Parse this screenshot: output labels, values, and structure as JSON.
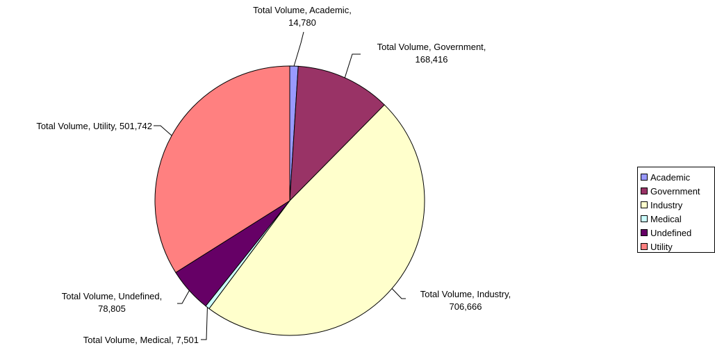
{
  "chart_data": {
    "type": "pie",
    "series_name": "Total Volume",
    "categories": [
      "Academic",
      "Government",
      "Industry",
      "Medical",
      "Undefined",
      "Utility"
    ],
    "values": [
      14780,
      168416,
      706666,
      7501,
      78805,
      501742
    ],
    "colors": [
      "#9999ff",
      "#993366",
      "#ffffcc",
      "#ccffff",
      "#660066",
      "#ff8080"
    ],
    "data_labels": [
      [
        "Total Volume, Academic,",
        "14,780"
      ],
      [
        "Total Volume, Government,",
        "168,416"
      ],
      [
        "Total Volume, Industry,",
        "706,666"
      ],
      [
        "Total Volume, Medical, 7,501"
      ],
      [
        "Total Volume, Undefined,",
        "78,805"
      ],
      [
        "Total Volume, Utility, 501,742"
      ]
    ],
    "legend": {
      "position": "right",
      "entries": [
        "Academic",
        "Government",
        "Industry",
        "Medical",
        "Undefined",
        "Utility"
      ]
    },
    "start_angle": "12 o'clock",
    "direction": "clockwise"
  }
}
